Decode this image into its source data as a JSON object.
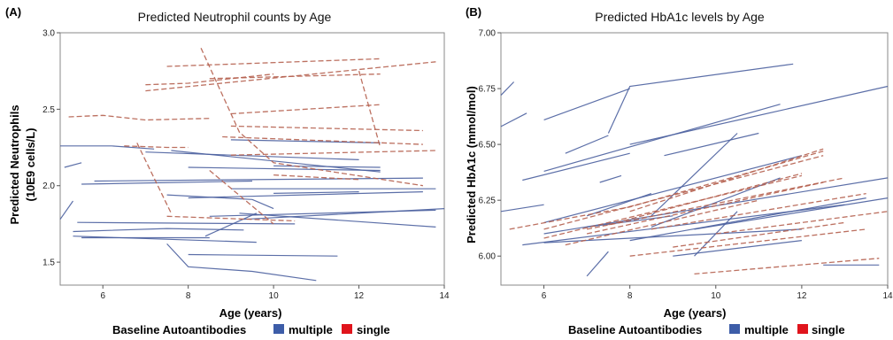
{
  "colors": {
    "multiple": "#4a5f9e",
    "single": "#b5614f",
    "legend_multiple": "#3d5da8",
    "legend_single": "#e0141c",
    "frame": "#888888"
  },
  "chart_data": [
    {
      "type": "line",
      "panel": "(A)",
      "title": "Predicted Neutrophil counts by Age",
      "xlabel": "Age (years)",
      "ylabel": [
        "Predicted Neutrophils",
        "(10E9 cells/L)"
      ],
      "xlim": [
        5,
        14
      ],
      "ylim": [
        1.35,
        3.0
      ],
      "xticks": [
        "6",
        "8",
        "10",
        "12",
        "14"
      ],
      "xtick_values": [
        6,
        8,
        10,
        12,
        14
      ],
      "yticks": [
        "1.5",
        "2.0",
        "2.5",
        "3.0"
      ],
      "ytick_values": [
        1.5,
        2.0,
        2.5,
        3.0
      ],
      "legend": {
        "title": "Baseline Autoantibodies",
        "entries": [
          "multiple",
          "single"
        ]
      },
      "series": [
        {
          "group": "multiple",
          "x": [
            5.0,
            5.3
          ],
          "y": [
            1.78,
            1.9
          ]
        },
        {
          "group": "multiple",
          "x": [
            5.1,
            5.5
          ],
          "y": [
            2.12,
            2.15
          ]
        },
        {
          "group": "multiple",
          "x": [
            5.0,
            6.2,
            7.2
          ],
          "y": [
            2.26,
            2.26,
            2.24
          ]
        },
        {
          "group": "multiple",
          "x": [
            5.5,
            9.5
          ],
          "y": [
            2.01,
            2.03
          ]
        },
        {
          "group": "multiple",
          "x": [
            5.8,
            13.5
          ],
          "y": [
            2.03,
            2.05
          ]
        },
        {
          "group": "multiple",
          "x": [
            5.4,
            10.5
          ],
          "y": [
            1.76,
            1.75
          ]
        },
        {
          "group": "multiple",
          "x": [
            5.3,
            7.5,
            9.3
          ],
          "y": [
            1.7,
            1.72,
            1.71
          ]
        },
        {
          "group": "multiple",
          "x": [
            5.3,
            9.6
          ],
          "y": [
            1.67,
            1.63
          ]
        },
        {
          "group": "multiple",
          "x": [
            5.5,
            8.5
          ],
          "y": [
            1.66,
            1.66
          ]
        },
        {
          "group": "multiple",
          "x": [
            7.5,
            8.0,
            9.5,
            11.0
          ],
          "y": [
            1.62,
            1.47,
            1.44,
            1.38
          ]
        },
        {
          "group": "multiple",
          "x": [
            8.0,
            11.5
          ],
          "y": [
            1.55,
            1.54
          ]
        },
        {
          "group": "multiple",
          "x": [
            8.4,
            9.6
          ],
          "y": [
            1.67,
            1.82
          ]
        },
        {
          "group": "multiple",
          "x": [
            8.5,
            13.8
          ],
          "y": [
            1.8,
            1.84
          ]
        },
        {
          "group": "multiple",
          "x": [
            9.3,
            14.0
          ],
          "y": [
            1.78,
            1.85
          ]
        },
        {
          "group": "multiple",
          "x": [
            9.2,
            13.8
          ],
          "y": [
            1.82,
            1.73
          ]
        },
        {
          "group": "multiple",
          "x": [
            8.0,
            13.5
          ],
          "y": [
            1.92,
            1.96
          ]
        },
        {
          "group": "multiple",
          "x": [
            9.0,
            13.8
          ],
          "y": [
            1.98,
            1.98
          ]
        },
        {
          "group": "multiple",
          "x": [
            7.0,
            12.0
          ],
          "y": [
            2.22,
            2.17
          ]
        },
        {
          "group": "multiple",
          "x": [
            8.0,
            12.5
          ],
          "y": [
            2.12,
            2.1
          ]
        },
        {
          "group": "multiple",
          "x": [
            7.6,
            12.5
          ],
          "y": [
            2.23,
            2.09
          ]
        },
        {
          "group": "multiple",
          "x": [
            9.0,
            12.5
          ],
          "y": [
            2.3,
            2.28
          ]
        },
        {
          "group": "multiple",
          "x": [
            10.0,
            12.5
          ],
          "y": [
            2.13,
            2.12
          ]
        },
        {
          "group": "multiple",
          "x": [
            7.5,
            9.5,
            10.0
          ],
          "y": [
            1.94,
            1.91,
            1.85
          ]
        },
        {
          "group": "multiple",
          "x": [
            10.0,
            12.0
          ],
          "y": [
            1.95,
            1.96
          ]
        },
        {
          "group": "single",
          "x": [
            5.2,
            6.0,
            7.0,
            8.5
          ],
          "y": [
            2.45,
            2.46,
            2.43,
            2.44
          ]
        },
        {
          "group": "single",
          "x": [
            6.5,
            7.5,
            8.0
          ],
          "y": [
            2.26,
            2.25,
            2.25
          ]
        },
        {
          "group": "single",
          "x": [
            7.0,
            8.0,
            10.0
          ],
          "y": [
            2.66,
            2.67,
            2.73
          ]
        },
        {
          "group": "single",
          "x": [
            7.5,
            12.5
          ],
          "y": [
            2.78,
            2.83
          ]
        },
        {
          "group": "single",
          "x": [
            7.0,
            13.8
          ],
          "y": [
            2.62,
            2.81
          ]
        },
        {
          "group": "single",
          "x": [
            8.5,
            12.5
          ],
          "y": [
            2.7,
            2.73
          ]
        },
        {
          "group": "single",
          "x": [
            9.0,
            12.5
          ],
          "y": [
            2.47,
            2.53
          ]
        },
        {
          "group": "single",
          "x": [
            8.8,
            13.5
          ],
          "y": [
            2.32,
            2.27
          ]
        },
        {
          "group": "single",
          "x": [
            9.0,
            13.5
          ],
          "y": [
            2.39,
            2.36
          ]
        },
        {
          "group": "single",
          "x": [
            9.0,
            13.8
          ],
          "y": [
            2.2,
            2.23
          ]
        },
        {
          "group": "single",
          "x": [
            8.3,
            9.2,
            10.0,
            13.5
          ],
          "y": [
            2.9,
            2.35,
            2.15,
            2.0
          ]
        },
        {
          "group": "single",
          "x": [
            6.8,
            7.6
          ],
          "y": [
            2.28,
            1.82
          ]
        },
        {
          "group": "single",
          "x": [
            8.5,
            10.0
          ],
          "y": [
            2.1,
            1.75
          ]
        },
        {
          "group": "single",
          "x": [
            7.5,
            10.5
          ],
          "y": [
            1.8,
            1.77
          ]
        },
        {
          "group": "single",
          "x": [
            10.0,
            12.0
          ],
          "y": [
            2.07,
            2.04
          ]
        },
        {
          "group": "single",
          "x": [
            12.0,
            12.5
          ],
          "y": [
            2.75,
            2.25
          ]
        }
      ]
    },
    {
      "type": "line",
      "panel": "(B)",
      "title": "Predicted HbA1c levels by Age",
      "xlabel": "Age (years)",
      "ylabel": [
        "Predicted HbA1c (mmol/mol)"
      ],
      "xlim": [
        5,
        14
      ],
      "ylim": [
        5.87,
        7.0
      ],
      "xticks": [
        "6",
        "8",
        "10",
        "12",
        "14"
      ],
      "xtick_values": [
        6,
        8,
        10,
        12,
        14
      ],
      "yticks": [
        "6.00",
        "6.25",
        "6.50",
        "6.75",
        "7.00"
      ],
      "ytick_values": [
        6.0,
        6.25,
        6.5,
        6.75,
        7.0
      ],
      "legend": {
        "title": "Baseline Autoantibodies",
        "entries": [
          "multiple",
          "single"
        ]
      },
      "series": [
        {
          "group": "multiple",
          "x": [
            5.0,
            5.3
          ],
          "y": [
            6.72,
            6.78
          ]
        },
        {
          "group": "multiple",
          "x": [
            5.0,
            5.6
          ],
          "y": [
            6.58,
            6.64
          ]
        },
        {
          "group": "multiple",
          "x": [
            6.0,
            8.0
          ],
          "y": [
            6.61,
            6.75
          ]
        },
        {
          "group": "multiple",
          "x": [
            6.5,
            7.5
          ],
          "y": [
            6.46,
            6.54
          ]
        },
        {
          "group": "multiple",
          "x": [
            7.5,
            8.0,
            11.8
          ],
          "y": [
            6.55,
            6.76,
            6.86
          ]
        },
        {
          "group": "multiple",
          "x": [
            8.0,
            14.0
          ],
          "y": [
            6.5,
            6.76
          ]
        },
        {
          "group": "multiple",
          "x": [
            5.5,
            8.0
          ],
          "y": [
            6.34,
            6.46
          ]
        },
        {
          "group": "multiple",
          "x": [
            6.0,
            11.5
          ],
          "y": [
            6.38,
            6.68
          ]
        },
        {
          "group": "multiple",
          "x": [
            5.0,
            6.0
          ],
          "y": [
            6.2,
            6.23
          ]
        },
        {
          "group": "multiple",
          "x": [
            6.0,
            14.0
          ],
          "y": [
            6.1,
            6.35
          ]
        },
        {
          "group": "multiple",
          "x": [
            6.0,
            12.0
          ],
          "y": [
            6.15,
            6.45
          ]
        },
        {
          "group": "multiple",
          "x": [
            5.5,
            13.0
          ],
          "y": [
            6.05,
            6.23
          ]
        },
        {
          "group": "multiple",
          "x": [
            7.0,
            9.0
          ],
          "y": [
            6.13,
            6.18
          ]
        },
        {
          "group": "multiple",
          "x": [
            7.0,
            8.5
          ],
          "y": [
            6.18,
            6.28
          ]
        },
        {
          "group": "multiple",
          "x": [
            8.5,
            11.5
          ],
          "y": [
            6.13,
            6.35
          ]
        },
        {
          "group": "multiple",
          "x": [
            8.0,
            13.5
          ],
          "y": [
            6.07,
            6.26
          ]
        },
        {
          "group": "multiple",
          "x": [
            6.0,
            12.0
          ],
          "y": [
            6.06,
            6.12
          ]
        },
        {
          "group": "multiple",
          "x": [
            9.5,
            14.0
          ],
          "y": [
            6.12,
            6.26
          ]
        },
        {
          "group": "multiple",
          "x": [
            9.0,
            12.0
          ],
          "y": [
            6.0,
            6.07
          ]
        },
        {
          "group": "multiple",
          "x": [
            9.5,
            10.5
          ],
          "y": [
            6.0,
            6.2
          ]
        },
        {
          "group": "multiple",
          "x": [
            7.0,
            7.5
          ],
          "y": [
            5.91,
            6.02
          ]
        },
        {
          "group": "multiple",
          "x": [
            8.5,
            10.5
          ],
          "y": [
            6.18,
            6.55
          ]
        },
        {
          "group": "multiple",
          "x": [
            7.3,
            7.8
          ],
          "y": [
            6.33,
            6.36
          ]
        },
        {
          "group": "multiple",
          "x": [
            8.8,
            11.0
          ],
          "y": [
            6.45,
            6.55
          ]
        },
        {
          "group": "multiple",
          "x": [
            12.5,
            13.8
          ],
          "y": [
            5.96,
            5.96
          ]
        },
        {
          "group": "single",
          "x": [
            5.2,
            8.0,
            12.5
          ],
          "y": [
            6.12,
            6.22,
            6.47
          ]
        },
        {
          "group": "single",
          "x": [
            6.0,
            12.5
          ],
          "y": [
            6.12,
            6.45
          ]
        },
        {
          "group": "single",
          "x": [
            6.0,
            12.0
          ],
          "y": [
            6.08,
            6.36
          ]
        },
        {
          "group": "single",
          "x": [
            7.0,
            12.5
          ],
          "y": [
            6.1,
            6.33
          ]
        },
        {
          "group": "single",
          "x": [
            7.5,
            12.0
          ],
          "y": [
            6.14,
            6.37
          ]
        },
        {
          "group": "single",
          "x": [
            8.0,
            12.5
          ],
          "y": [
            6.2,
            6.48
          ]
        },
        {
          "group": "single",
          "x": [
            8.5,
            13.5
          ],
          "y": [
            6.12,
            6.28
          ]
        },
        {
          "group": "single",
          "x": [
            9.0,
            13.0
          ],
          "y": [
            6.04,
            6.15
          ]
        },
        {
          "group": "single",
          "x": [
            8.0,
            13.5
          ],
          "y": [
            6.0,
            6.12
          ]
        },
        {
          "group": "single",
          "x": [
            9.5,
            13.8
          ],
          "y": [
            5.92,
            5.99
          ]
        },
        {
          "group": "single",
          "x": [
            10.0,
            14.0
          ],
          "y": [
            6.1,
            6.2
          ]
        },
        {
          "group": "single",
          "x": [
            6.5,
            11.0
          ],
          "y": [
            6.05,
            6.25
          ]
        },
        {
          "group": "single",
          "x": [
            7.0,
            13.0
          ],
          "y": [
            6.12,
            6.35
          ]
        }
      ]
    }
  ]
}
